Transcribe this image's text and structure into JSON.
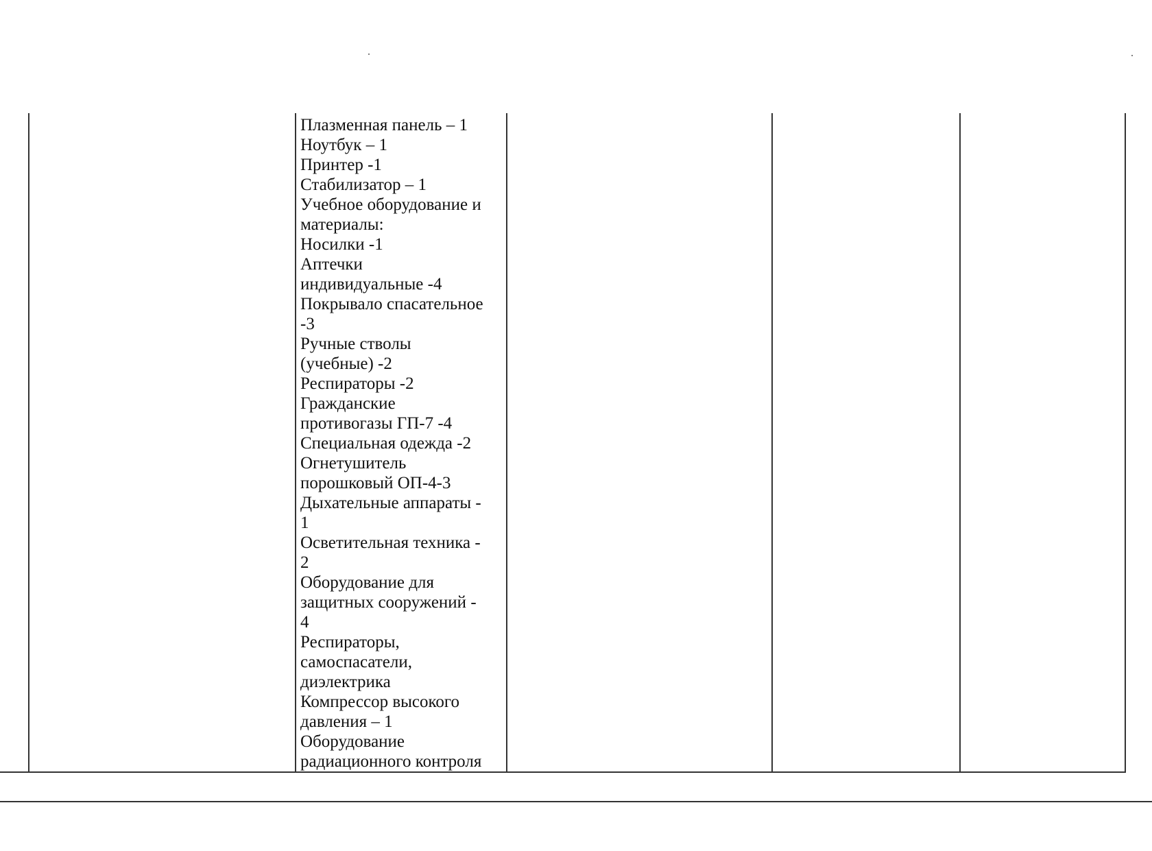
{
  "table": {
    "equipment_cell_lines": [
      "Плазменная панель – 1",
      "Ноутбук – 1",
      "Принтер -1",
      "Стабилизатор – 1",
      "Учебное оборудование и",
      "материалы:",
      "Носилки -1",
      "Аптечки",
      "индивидуальные -4",
      "Покрывало спасательное",
      "-3",
      "Ручные стволы",
      "(учебные) -2",
      "Респираторы -2",
      "Гражданские",
      "противогазы ГП-7 -4",
      "Специальная одежда -2",
      "Огнетушитель",
      "порошковый ОП-4-3",
      "Дыхательные аппараты -",
      "1",
      "Осветительная техника -",
      "2",
      "Оборудование для",
      "защитных сооружений -",
      "4",
      "Респираторы,",
      "самоспасатели,",
      "диэлектрика",
      "Компрессор высокого",
      "давления – 1",
      "Оборудование",
      "радиационного контроля"
    ]
  }
}
